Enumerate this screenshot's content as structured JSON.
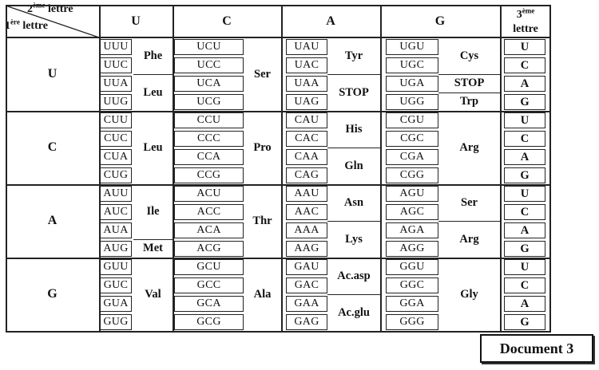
{
  "header": {
    "top_left_line1_sup": "ème",
    "top_left_line1_num": "2",
    "top_left_line1_text": " lettre",
    "top_left_line2_num": "1",
    "top_left_line2_sup": "ère",
    "top_left_line2_text": " lettre",
    "third_num": "3",
    "third_sup": "ème",
    "third_text": "lettre",
    "second_letters": [
      "U",
      "C",
      "A",
      "G"
    ]
  },
  "first_letters": [
    "U",
    "C",
    "A",
    "G"
  ],
  "third_letters": [
    "U",
    "C",
    "A",
    "G"
  ],
  "codon_rows": [
    [
      "UUU",
      "UCU",
      "UAU",
      "UGU"
    ],
    [
      "UUC",
      "UCC",
      "UAC",
      "UGC"
    ],
    [
      "UUA",
      "UCA",
      "UAA",
      "UGA"
    ],
    [
      "UUG",
      "UCG",
      "UAG",
      "UGG"
    ],
    [
      "CUU",
      "CCU",
      "CAU",
      "CGU"
    ],
    [
      "CUC",
      "CCC",
      "CAC",
      "CGC"
    ],
    [
      "CUA",
      "CCA",
      "CAA",
      "CGA"
    ],
    [
      "CUG",
      "CCG",
      "CAG",
      "CGG"
    ],
    [
      "AUU",
      "ACU",
      "AAU",
      "AGU"
    ],
    [
      "AUC",
      "ACC",
      "AAC",
      "AGC"
    ],
    [
      "AUA",
      "ACA",
      "AAA",
      "AGA"
    ],
    [
      "AUG",
      "ACG",
      "AAG",
      "AGG"
    ],
    [
      "GUU",
      "GCU",
      "GAU",
      "GGU"
    ],
    [
      "GUC",
      "GCC",
      "GAC",
      "GGC"
    ],
    [
      "GUA",
      "GCA",
      "GAA",
      "GGA"
    ],
    [
      "GUG",
      "GCG",
      "GAG",
      "GGG"
    ]
  ],
  "amino_acids": [
    {
      "col": 0,
      "start": 0,
      "span": 2,
      "name": "Phe"
    },
    {
      "col": 0,
      "start": 2,
      "span": 2,
      "name": "Leu"
    },
    {
      "col": 0,
      "start": 4,
      "span": 4,
      "name": "Leu"
    },
    {
      "col": 0,
      "start": 8,
      "span": 3,
      "name": "Ile"
    },
    {
      "col": 0,
      "start": 11,
      "span": 1,
      "name": "Met"
    },
    {
      "col": 0,
      "start": 12,
      "span": 4,
      "name": "Val"
    },
    {
      "col": 1,
      "start": 0,
      "span": 4,
      "name": "Ser"
    },
    {
      "col": 1,
      "start": 4,
      "span": 4,
      "name": "Pro"
    },
    {
      "col": 1,
      "start": 8,
      "span": 4,
      "name": "Thr"
    },
    {
      "col": 1,
      "start": 12,
      "span": 4,
      "name": "Ala"
    },
    {
      "col": 2,
      "start": 0,
      "span": 2,
      "name": "Tyr"
    },
    {
      "col": 2,
      "start": 2,
      "span": 2,
      "name": "STOP"
    },
    {
      "col": 2,
      "start": 4,
      "span": 2,
      "name": "His"
    },
    {
      "col": 2,
      "start": 6,
      "span": 2,
      "name": "Gln"
    },
    {
      "col": 2,
      "start": 8,
      "span": 2,
      "name": "Asn"
    },
    {
      "col": 2,
      "start": 10,
      "span": 2,
      "name": "Lys"
    },
    {
      "col": 2,
      "start": 12,
      "span": 2,
      "name": "Ac.asp"
    },
    {
      "col": 2,
      "start": 14,
      "span": 2,
      "name": "Ac.glu"
    },
    {
      "col": 3,
      "start": 0,
      "span": 2,
      "name": "Cys"
    },
    {
      "col": 3,
      "start": 2,
      "span": 1,
      "name": "STOP"
    },
    {
      "col": 3,
      "start": 3,
      "span": 1,
      "name": "Trp"
    },
    {
      "col": 3,
      "start": 4,
      "span": 4,
      "name": "Arg"
    },
    {
      "col": 3,
      "start": 8,
      "span": 2,
      "name": "Ser"
    },
    {
      "col": 3,
      "start": 10,
      "span": 2,
      "name": "Arg"
    },
    {
      "col": 3,
      "start": 12,
      "span": 4,
      "name": "Gly"
    }
  ],
  "document_label": "Document 3"
}
